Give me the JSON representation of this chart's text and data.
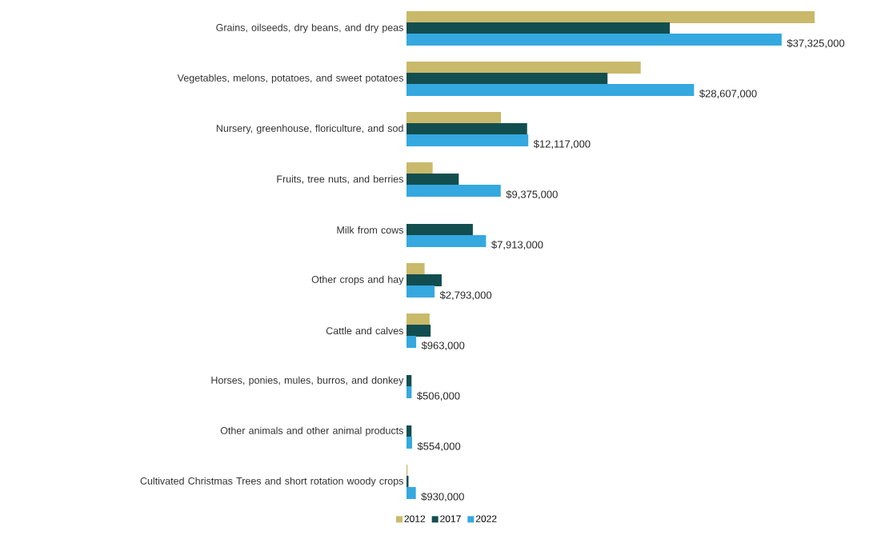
{
  "chart_data": {
    "type": "bar",
    "orientation": "horizontal",
    "legend": "bottom",
    "categories": [
      "Grains, oilseeds, dry beans, and dry peas",
      "Vegetables, melons, potatoes, and sweet potatoes",
      "Nursery, greenhouse, floriculture, and sod",
      "Fruits, tree nuts, and berries",
      "Milk from cows",
      "Other crops and hay",
      "Cattle and calves",
      "Horses, ponies, mules, burros, and donkey",
      "Other animals and other animal products",
      "Cultivated Christmas Trees and short rotation woody crops"
    ],
    "series": [
      {
        "name": "2012",
        "color": "#c9b96a",
        "values": [
          40600000,
          23300000,
          9400000,
          2600000,
          null,
          1800000,
          2300000,
          null,
          null,
          100000
        ]
      },
      {
        "name": "2017",
        "color": "#124e4f",
        "values": [
          26200000,
          20000000,
          12000000,
          5200000,
          6600000,
          3500000,
          2400000,
          500000,
          500000,
          200000
        ]
      },
      {
        "name": "2022",
        "color": "#35a8e0",
        "values": [
          37325000,
          28607000,
          12117000,
          9375000,
          7913000,
          2793000,
          963000,
          506000,
          554000,
          930000
        ],
        "value_labels": [
          "$37,325,000",
          "$28,607,000",
          "$12,117,000",
          "$9,375,000",
          "$7,913,000",
          "$2,793,000",
          "$963,000",
          "$506,000",
          "$554,000",
          "$930,000"
        ]
      }
    ]
  }
}
